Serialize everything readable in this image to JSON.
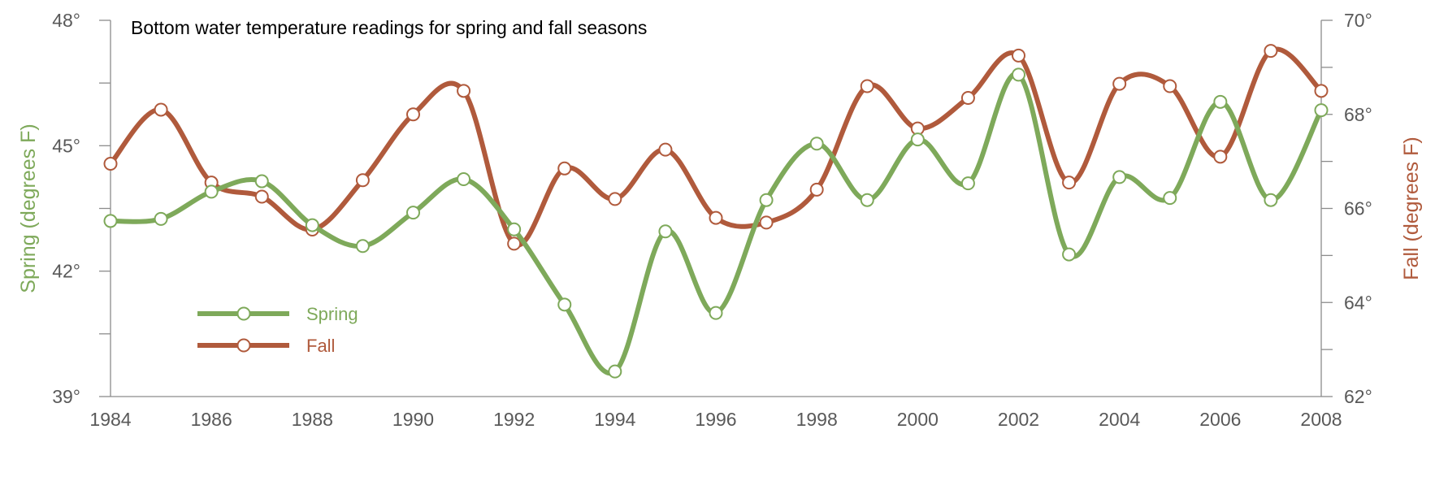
{
  "chart_data": {
    "type": "line",
    "title": "Bottom water temperature readings for spring and fall seasons",
    "x_tick_labels": [
      "1984",
      "1986",
      "1988",
      "1990",
      "1992",
      "1994",
      "1996",
      "1998",
      "2000",
      "2002",
      "2004",
      "2006",
      "2008"
    ],
    "y_left": {
      "label": "Spring (degrees F)",
      "range": [
        39,
        48
      ],
      "tick_labels": [
        "48°",
        "45°",
        "42°",
        "39°"
      ],
      "tick_values": [
        48,
        45,
        42,
        39
      ]
    },
    "y_right": {
      "label": "Fall (degrees F)",
      "range": [
        62,
        70
      ],
      "tick_labels": [
        "70°",
        "68°",
        "66°",
        "64°",
        "62°"
      ],
      "tick_values": [
        70,
        68,
        66,
        64,
        62
      ]
    },
    "grid": false,
    "legend_position": "bottom-left",
    "series": [
      {
        "name": "Spring",
        "axis": "left",
        "color": "#7ea95a",
        "x": [
          1984,
          1985,
          1986,
          1987,
          1988,
          1989,
          1990,
          1991,
          1992,
          1993,
          1994,
          1995,
          1996,
          1997,
          1998,
          1999,
          2000,
          2001,
          2002,
          2003,
          2004,
          2005,
          2006,
          2007,
          2008
        ],
        "values": [
          43.2,
          43.25,
          43.9,
          44.15,
          43.1,
          42.6,
          43.4,
          44.2,
          43.0,
          41.2,
          39.6,
          42.95,
          41.0,
          43.7,
          45.05,
          43.7,
          45.15,
          44.1,
          46.7,
          42.4,
          44.25,
          43.75,
          46.05,
          43.7,
          45.85
        ]
      },
      {
        "name": "Fall",
        "axis": "right",
        "color": "#b05a3c",
        "x": [
          1984,
          1985,
          1986,
          1987,
          1988,
          1989,
          1990,
          1991,
          1992,
          1993,
          1994,
          1995,
          1996,
          1997,
          1998,
          1999,
          2000,
          2001,
          2002,
          2003,
          2004,
          2005,
          2006,
          2007,
          2008
        ],
        "values": [
          66.95,
          68.1,
          66.55,
          66.25,
          65.55,
          66.6,
          68.0,
          68.5,
          65.25,
          66.85,
          66.2,
          67.25,
          65.8,
          65.7,
          66.4,
          68.6,
          67.7,
          68.35,
          69.25,
          66.55,
          68.65,
          68.6,
          67.1,
          69.35,
          68.5
        ]
      }
    ]
  }
}
